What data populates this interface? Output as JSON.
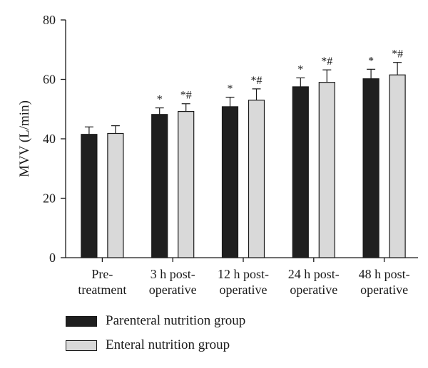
{
  "chart_data": {
    "type": "bar",
    "ylabel": "MVV (L/min)",
    "xlabel": "",
    "ylim": [
      0,
      80
    ],
    "yticks": [
      0,
      20,
      40,
      60,
      80
    ],
    "categories": [
      [
        "Pre-",
        "treatment"
      ],
      [
        "3 h post-",
        "operative"
      ],
      [
        "12 h post-",
        "operative"
      ],
      [
        "24 h post-",
        "operative"
      ],
      [
        "48 h post-",
        "operative"
      ]
    ],
    "series": [
      {
        "name": "Parenteral nutrition group",
        "color": "#1f1f1f",
        "values": [
          41.5,
          48.2,
          50.8,
          57.5,
          60.2
        ],
        "errors": [
          2.5,
          2.2,
          3.2,
          3.0,
          3.2
        ],
        "annotations": [
          "",
          "*",
          "*",
          "*",
          "*"
        ]
      },
      {
        "name": "Enteral nutrition group",
        "color": "#d9d9d9",
        "values": [
          41.8,
          49.2,
          53.0,
          59.0,
          61.5
        ],
        "errors": [
          2.6,
          2.6,
          3.8,
          4.2,
          4.2
        ],
        "annotations": [
          "",
          "*#",
          "*#",
          "*#",
          "*#"
        ]
      }
    ],
    "grid": false,
    "legend_position": "bottom-left"
  }
}
